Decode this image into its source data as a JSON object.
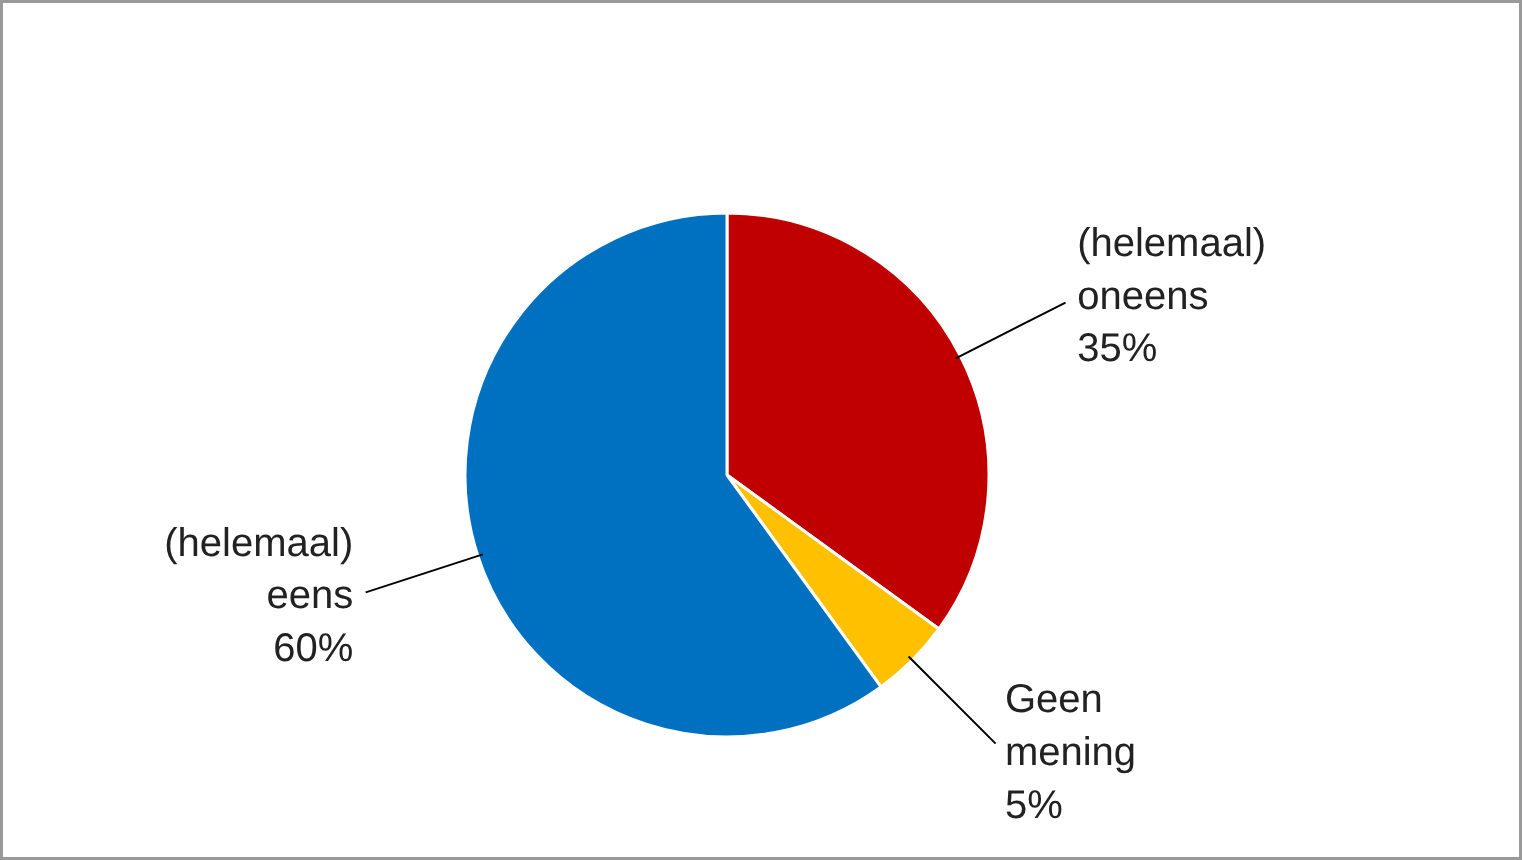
{
  "chart_data": {
    "type": "pie",
    "categories": [
      "(helemaal) oneens",
      "Geen mening",
      "(helemaal) eens"
    ],
    "values": [
      35,
      5,
      60
    ],
    "colors": [
      "#c00000",
      "#ffc000",
      "#0070c0"
    ],
    "value_labels": [
      "35%",
      "5%",
      "60%"
    ]
  }
}
